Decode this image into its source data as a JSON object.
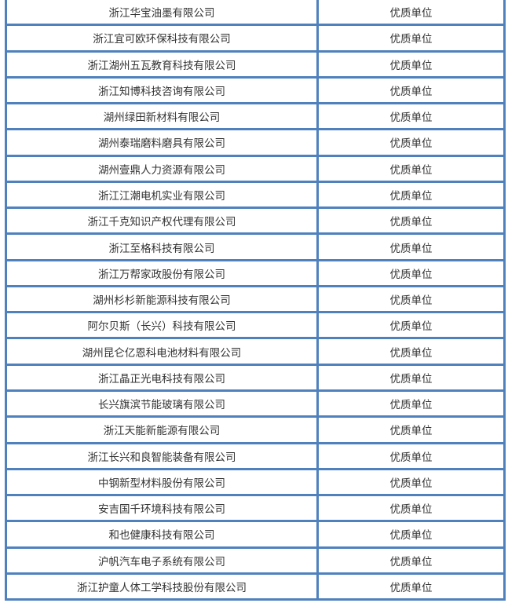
{
  "table": {
    "border_color": "#4f81bd",
    "rows": [
      {
        "company": "浙江华宝油墨有限公司",
        "award": "优质单位"
      },
      {
        "company": "浙江宜可欧环保科技有限公司",
        "award": "优质单位"
      },
      {
        "company": "浙江湖州五瓦教育科技有限公司",
        "award": "优质单位"
      },
      {
        "company": "浙江知博科技咨询有限公司",
        "award": "优质单位"
      },
      {
        "company": "湖州绿田新材料有限公司",
        "award": "优质单位"
      },
      {
        "company": "湖州泰瑞磨料磨具有限公司",
        "award": "优质单位"
      },
      {
        "company": "湖州壹鼎人力资源有限公司",
        "award": "优质单位"
      },
      {
        "company": "浙江江潮电机实业有限公司",
        "award": "优质单位"
      },
      {
        "company": "浙江千克知识产权代理有限公司",
        "award": "优质单位"
      },
      {
        "company": "浙江至格科技有限公司",
        "award": "优质单位"
      },
      {
        "company": "浙江万帮家政股份有限公司",
        "award": "优质单位"
      },
      {
        "company": "湖州杉杉新能源科技有限公司",
        "award": "优质单位"
      },
      {
        "company": "阿尔贝斯（长兴）科技有限公司",
        "award": "优质单位"
      },
      {
        "company": "湖州昆仑亿恩科电池材料有限公司",
        "award": "优质单位"
      },
      {
        "company": "浙江晶正光电科技有限公司",
        "award": "优质单位"
      },
      {
        "company": "长兴旗滨节能玻璃有限公司",
        "award": "优质单位"
      },
      {
        "company": "浙江天能新能源有限公司",
        "award": "优质单位"
      },
      {
        "company": "浙江长兴和良智能装备有限公司",
        "award": "优质单位"
      },
      {
        "company": "中钢新型材料股份有限公司",
        "award": "优质单位"
      },
      {
        "company": "安吉国千环境科技有限公司",
        "award": "优质单位"
      },
      {
        "company": "和也健康科技有限公司",
        "award": "优质单位"
      },
      {
        "company": "沪帆汽车电子系统有限公司",
        "award": "优质单位"
      },
      {
        "company": "浙江护童人体工学科技股份有限公司",
        "award": "优质单位"
      }
    ]
  }
}
